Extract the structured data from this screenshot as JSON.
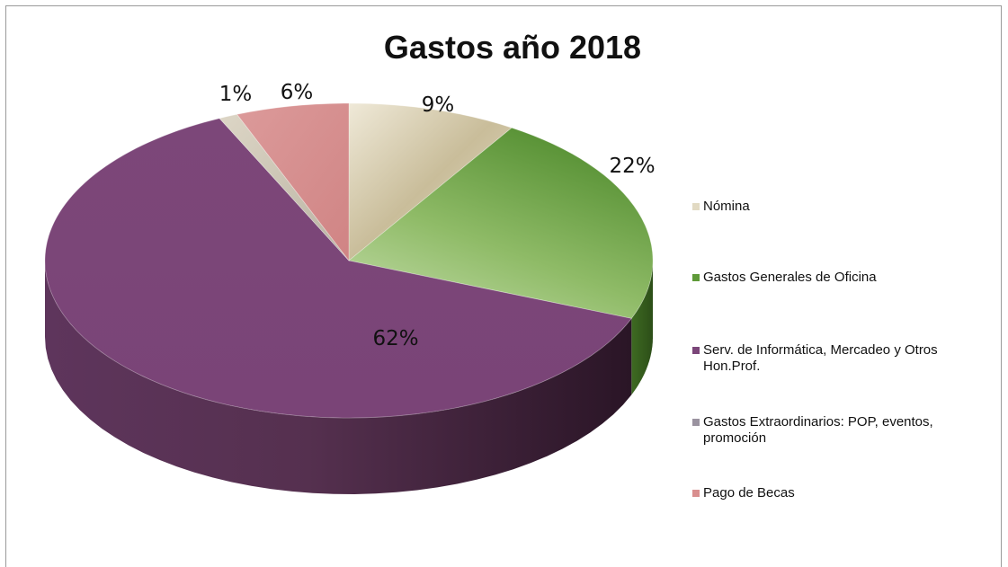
{
  "chart_data": {
    "type": "pie",
    "title": "Gastos año 2018",
    "style": "3d",
    "legend_position": "right",
    "slices": [
      {
        "label": "Nómina",
        "percent": 9,
        "value_label": "9%",
        "color": "#d9cfb4"
      },
      {
        "label": "Gastos Generales de Oficina",
        "percent": 22,
        "value_label": "22%",
        "color": "#6fa044"
      },
      {
        "label": "Serv. de Informática, Mercadeo y Otros Hon.Prof.",
        "percent": 62,
        "value_label": "62%",
        "color": "#7b4679"
      },
      {
        "label": "Gastos Extraordinarios: POP, eventos, promoción",
        "percent": 1,
        "value_label": "1%",
        "color": "#c9c3b4"
      },
      {
        "label": "Pago de Becas",
        "percent": 6,
        "value_label": "6%",
        "color": "#d98f8f"
      }
    ]
  }
}
